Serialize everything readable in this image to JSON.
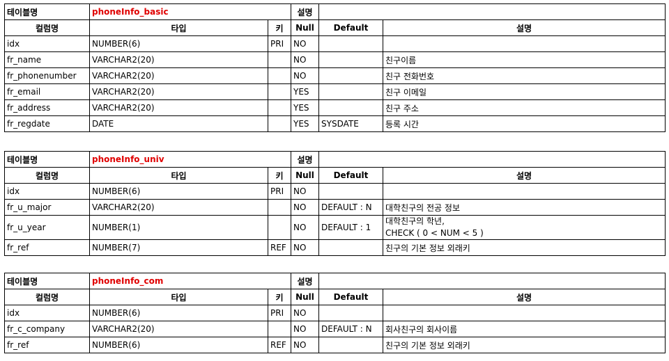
{
  "labels": {
    "table_name": "테이블명",
    "description": "설명",
    "col_name": "컬럼명",
    "col_type": "타입",
    "col_key": "키",
    "col_null": "Null",
    "col_default": "Default",
    "col_desc": "설명"
  },
  "tables": [
    {
      "name": "phoneInfo_basic",
      "rows": [
        {
          "name": "idx",
          "type": "NUMBER(6)",
          "key": "PRI",
          "null": "NO",
          "default": "",
          "desc": ""
        },
        {
          "name": "fr_name",
          "type": "VARCHAR2(20)",
          "key": "",
          "null": "NO",
          "default": "",
          "desc": "친구이름"
        },
        {
          "name": "fr_phonenumber",
          "type": "VARCHAR2(20)",
          "key": "",
          "null": "NO",
          "default": "",
          "desc": "친구 전화번호"
        },
        {
          "name": "fr_email",
          "type": "VARCHAR2(20)",
          "key": "",
          "null": "YES",
          "default": "",
          "desc": "친구 이메일"
        },
        {
          "name": "fr_address",
          "type": "VARCHAR2(20)",
          "key": "",
          "null": "YES",
          "default": "",
          "desc": "친구 주소"
        },
        {
          "name": "fr_regdate",
          "type": "DATE",
          "key": "",
          "null": "YES",
          "default": "SYSDATE",
          "desc": "등록 시간"
        }
      ]
    },
    {
      "name": "phoneInfo_univ",
      "rows": [
        {
          "name": "idx",
          "type": "NUMBER(6)",
          "key": "PRI",
          "null": "NO",
          "default": "",
          "desc": ""
        },
        {
          "name": "fr_u_major",
          "type": "VARCHAR2(20)",
          "key": "",
          "null": "NO",
          "default": "DEFAULT : N",
          "desc": "대학친구의 전공 정보"
        },
        {
          "name": "fr_u_year",
          "type": "NUMBER(1)",
          "key": "",
          "null": "NO",
          "default": "DEFAULT : 1",
          "desc": "대학친구의 학년,",
          "desc2": "CHECK ( 0 < NUM < 5 )"
        },
        {
          "name": "fr_ref",
          "type": "NUMBER(7)",
          "key": "REF",
          "null": "NO",
          "default": "",
          "desc": "친구의 기본 정보 외래키"
        }
      ]
    },
    {
      "name": "phoneInfo_com",
      "rows": [
        {
          "name": "idx",
          "type": "NUMBER(6)",
          "key": "PRI",
          "null": "NO",
          "default": "",
          "desc": ""
        },
        {
          "name": "fr_c_company",
          "type": "VARCHAR2(20)",
          "key": "",
          "null": "NO",
          "default": "DEFAULT : N",
          "desc": "회사친구의 회사이름"
        },
        {
          "name": "fr_ref",
          "type": "NUMBER(6)",
          "key": "REF",
          "null": "NO",
          "default": "",
          "desc": "친구의 기본 정보 외래키"
        }
      ]
    }
  ]
}
